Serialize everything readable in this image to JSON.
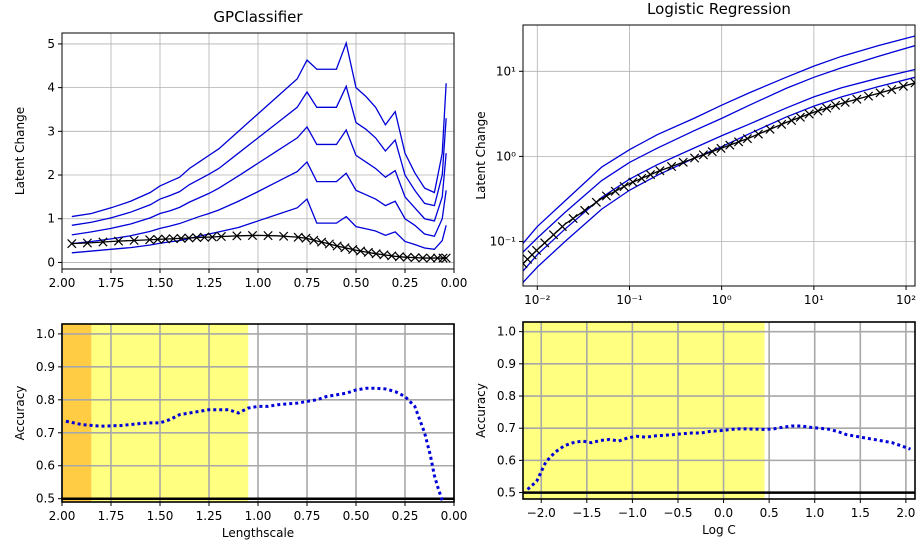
{
  "colors": {
    "series": "#0000d8",
    "mean": "#000000",
    "accuracy": "#0000d8",
    "grid": "#b0b0b0",
    "highlight_yellow": "#ffff80",
    "highlight_orange": "#ffcc44"
  },
  "chart_data": [
    {
      "id": "gp-latent",
      "type": "line",
      "title": "GPClassifier",
      "xlabel": "",
      "ylabel": "Latent Change",
      "xlim": [
        2.0,
        0.0
      ],
      "ylim": [
        -0.15,
        5.25
      ],
      "grid": true,
      "xticks": [
        2.0,
        1.75,
        1.5,
        1.25,
        1.0,
        0.75,
        0.5,
        0.25,
        0.0
      ],
      "xtick_labels": [
        "2.00",
        "1.75",
        "1.50",
        "1.25",
        "1.00",
        "0.75",
        "0.50",
        "0.25",
        "0.00"
      ],
      "yticks": [
        0,
        1,
        2,
        3,
        4,
        5
      ],
      "ytick_labels": [
        "0",
        "1",
        "2",
        "3",
        "4",
        "5"
      ],
      "x": [
        1.95,
        1.85,
        1.75,
        1.65,
        1.55,
        1.5,
        1.45,
        1.4,
        1.35,
        1.3,
        1.25,
        1.2,
        1.1,
        1.0,
        0.9,
        0.8,
        0.75,
        0.7,
        0.65,
        0.6,
        0.55,
        0.5,
        0.45,
        0.4,
        0.35,
        0.3,
        0.25,
        0.2,
        0.15,
        0.1,
        0.06,
        0.04
      ],
      "series": [
        {
          "values": [
            1.05,
            1.12,
            1.25,
            1.4,
            1.6,
            1.75,
            1.85,
            1.95,
            2.15,
            2.3,
            2.45,
            2.6,
            3.0,
            3.4,
            3.8,
            4.2,
            4.63,
            4.42,
            4.42,
            4.42,
            5.02,
            4.0,
            3.8,
            3.55,
            3.15,
            3.45,
            2.5,
            2.05,
            1.7,
            1.6,
            2.5,
            4.1
          ]
        },
        {
          "values": [
            0.85,
            0.92,
            1.02,
            1.15,
            1.32,
            1.45,
            1.53,
            1.62,
            1.78,
            1.9,
            2.02,
            2.15,
            2.5,
            2.85,
            3.2,
            3.55,
            3.9,
            3.55,
            3.55,
            3.55,
            4.03,
            3.2,
            3.05,
            2.85,
            2.55,
            2.8,
            2.0,
            1.65,
            1.35,
            1.3,
            2.0,
            3.3
          ]
        },
        {
          "values": [
            0.63,
            0.7,
            0.78,
            0.88,
            1.02,
            1.12,
            1.18,
            1.26,
            1.38,
            1.48,
            1.58,
            1.7,
            1.98,
            2.27,
            2.56,
            2.85,
            3.1,
            2.7,
            2.7,
            2.7,
            3.03,
            2.45,
            2.3,
            2.15,
            1.95,
            2.1,
            1.5,
            1.25,
            1.0,
            0.95,
            1.5,
            2.5
          ]
        },
        {
          "values": [
            0.43,
            0.48,
            0.54,
            0.61,
            0.71,
            0.78,
            0.83,
            0.89,
            0.97,
            1.05,
            1.12,
            1.2,
            1.4,
            1.62,
            1.85,
            2.08,
            2.3,
            1.85,
            1.85,
            1.85,
            2.04,
            1.65,
            1.55,
            1.45,
            1.3,
            1.4,
            1.0,
            0.85,
            0.65,
            0.6,
            1.0,
            1.65
          ]
        },
        {
          "values": [
            0.22,
            0.26,
            0.3,
            0.34,
            0.4,
            0.44,
            0.47,
            0.5,
            0.55,
            0.6,
            0.65,
            0.7,
            0.8,
            0.95,
            1.1,
            1.25,
            1.45,
            0.9,
            0.9,
            0.9,
            1.05,
            0.82,
            0.77,
            0.72,
            0.62,
            0.7,
            0.48,
            0.41,
            0.33,
            0.3,
            0.5,
            0.85
          ]
        },
        {
          "values": [
            0.43,
            0.45,
            0.48,
            0.5,
            0.52,
            0.53,
            0.54,
            0.55,
            0.56,
            0.57,
            0.58,
            0.59,
            0.61,
            0.62,
            0.61,
            0.58,
            0.55,
            0.49,
            0.44,
            0.38,
            0.33,
            0.28,
            0.24,
            0.2,
            0.17,
            0.14,
            0.12,
            0.11,
            0.1,
            0.1,
            0.1,
            0.1
          ]
        }
      ]
    },
    {
      "id": "lr-latent",
      "type": "line",
      "title": "Logistic Regression",
      "xlabel": "",
      "ylabel": "Latent Change",
      "xscale": "log",
      "yscale": "log",
      "xlim": [
        0.007,
        125
      ],
      "ylim": [
        0.03,
        35
      ],
      "grid": true,
      "xticks": [
        0.01,
        0.1,
        1,
        10,
        100
      ],
      "xtick_labels": [
        "10⁻²",
        "10⁻¹",
        "10⁰",
        "10¹",
        "10²"
      ],
      "yticks": [
        0.1,
        1,
        10
      ],
      "ytick_labels": [
        "10⁻¹",
        "10⁰",
        "10¹"
      ],
      "x": [
        0.007,
        0.01,
        0.02,
        0.05,
        0.1,
        0.2,
        0.5,
        1,
        2,
        5,
        10,
        20,
        50,
        125
      ],
      "series": [
        {
          "values": [
            0.095,
            0.15,
            0.3,
            0.75,
            1.2,
            1.8,
            2.8,
            4.0,
            5.6,
            8.5,
            11.5,
            15,
            20,
            26
          ]
        },
        {
          "values": [
            0.075,
            0.11,
            0.22,
            0.52,
            0.85,
            1.25,
            2.0,
            2.8,
            4.0,
            6.3,
            8.5,
            11,
            15,
            20
          ]
        },
        {
          "values": [
            0.045,
            0.07,
            0.14,
            0.33,
            0.54,
            0.8,
            1.25,
            1.75,
            2.4,
            3.7,
            5.0,
            6.4,
            8.3,
            10.5
          ]
        },
        {
          "values": [
            0.033,
            0.05,
            0.1,
            0.24,
            0.4,
            0.6,
            0.95,
            1.3,
            1.85,
            2.9,
            3.9,
            5.0,
            6.6,
            8.5
          ]
        },
        {
          "values": [
            0.055,
            0.08,
            0.16,
            0.32,
            0.48,
            0.66,
            0.95,
            1.25,
            1.65,
            2.5,
            3.3,
            4.2,
            5.5,
            7.3
          ]
        }
      ]
    },
    {
      "id": "gp-accuracy",
      "type": "line",
      "title": "",
      "xlabel": "Lengthscale",
      "ylabel": "Accuracy",
      "xlim": [
        2.0,
        0.0
      ],
      "ylim": [
        0.49,
        1.03
      ],
      "grid": true,
      "xticks": [
        2.0,
        1.75,
        1.5,
        1.25,
        1.0,
        0.75,
        0.5,
        0.25,
        0.0
      ],
      "xtick_labels": [
        "2.00",
        "1.75",
        "1.50",
        "1.25",
        "1.00",
        "0.75",
        "0.50",
        "0.25",
        "0.00"
      ],
      "yticks": [
        0.5,
        0.6,
        0.7,
        0.8,
        0.9,
        1.0
      ],
      "ytick_labels": [
        "0.5",
        "0.6",
        "0.7",
        "0.8",
        "0.9",
        "1.0"
      ],
      "regions": [
        {
          "from": 2.0,
          "to": 1.85,
          "color": "#ffcc44"
        },
        {
          "from": 1.85,
          "to": 1.05,
          "color": "#ffff80"
        }
      ],
      "baseline": 0.5,
      "x": [
        1.98,
        1.9,
        1.8,
        1.7,
        1.6,
        1.55,
        1.5,
        1.45,
        1.4,
        1.35,
        1.3,
        1.25,
        1.2,
        1.15,
        1.1,
        1.05,
        1.0,
        0.95,
        0.9,
        0.8,
        0.75,
        0.7,
        0.65,
        0.6,
        0.55,
        0.5,
        0.45,
        0.4,
        0.35,
        0.3,
        0.25,
        0.2,
        0.15,
        0.12,
        0.1,
        0.08,
        0.06
      ],
      "series": [
        {
          "values": [
            0.735,
            0.725,
            0.72,
            0.722,
            0.728,
            0.73,
            0.73,
            0.74,
            0.755,
            0.76,
            0.765,
            0.77,
            0.77,
            0.77,
            0.76,
            0.775,
            0.78,
            0.78,
            0.785,
            0.79,
            0.795,
            0.8,
            0.81,
            0.815,
            0.82,
            0.83,
            0.835,
            0.835,
            0.833,
            0.825,
            0.81,
            0.78,
            0.7,
            0.63,
            0.57,
            0.53,
            0.495
          ]
        }
      ]
    },
    {
      "id": "lr-accuracy",
      "type": "line",
      "title": "",
      "xlabel": "Log C",
      "ylabel": "Accuracy",
      "xlim": [
        -2.2,
        2.1
      ],
      "ylim": [
        0.48,
        1.03
      ],
      "grid": true,
      "xticks": [
        -2.0,
        -1.5,
        -1.0,
        -0.5,
        0.0,
        0.5,
        1.0,
        1.5,
        2.0
      ],
      "xtick_labels": [
        "−2.0",
        "−1.5",
        "−1.0",
        "−0.5",
        "0.0",
        "0.5",
        "1.0",
        "1.5",
        "2.0"
      ],
      "yticks": [
        0.5,
        0.6,
        0.7,
        0.8,
        0.9,
        1.0
      ],
      "ytick_labels": [
        "0.5",
        "0.6",
        "0.7",
        "0.8",
        "0.9",
        "1.0"
      ],
      "regions": [
        {
          "from": -2.2,
          "to": 0.45,
          "color": "#ffff80"
        }
      ],
      "baseline": 0.5,
      "x": [
        -2.15,
        -2.05,
        -1.95,
        -1.85,
        -1.75,
        -1.65,
        -1.55,
        -1.45,
        -1.35,
        -1.25,
        -1.15,
        -1.05,
        -0.95,
        -0.85,
        -0.75,
        -0.65,
        -0.55,
        -0.45,
        -0.35,
        -0.25,
        -0.15,
        -0.05,
        0.05,
        0.15,
        0.25,
        0.35,
        0.45,
        0.55,
        0.65,
        0.75,
        0.85,
        0.95,
        1.05,
        1.15,
        1.25,
        1.35,
        1.45,
        1.55,
        1.65,
        1.75,
        1.85,
        1.95,
        2.05
      ],
      "series": [
        {
          "values": [
            0.51,
            0.535,
            0.595,
            0.625,
            0.645,
            0.655,
            0.66,
            0.655,
            0.662,
            0.665,
            0.66,
            0.67,
            0.675,
            0.672,
            0.676,
            0.678,
            0.68,
            0.683,
            0.685,
            0.685,
            0.69,
            0.692,
            0.695,
            0.698,
            0.698,
            0.697,
            0.696,
            0.698,
            0.703,
            0.707,
            0.707,
            0.703,
            0.7,
            0.697,
            0.69,
            0.68,
            0.675,
            0.67,
            0.665,
            0.66,
            0.655,
            0.645,
            0.635
          ]
        }
      ]
    }
  ]
}
